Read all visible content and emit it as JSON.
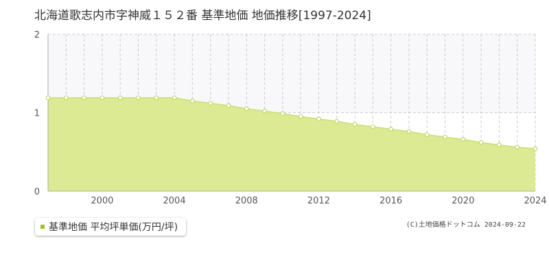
{
  "page": {
    "title": "北海道歌志内市字神威１５２番 基準地価 地価推移[1997-2024]",
    "credit": "(C)土地価格ドットコム 2024-09-22"
  },
  "legend": {
    "label": "基準地価 平均坪単価(万円/坪)"
  },
  "colors": {
    "area_fill": "#dbea93",
    "line": "#c8e070",
    "marker_fill": "#ffffff",
    "marker_stroke": "#bcd96a",
    "legend_swatch": "#9cc22b",
    "upper_band": "#f8f8fa",
    "grid": "#cccccc",
    "axis": "#aaaaaa"
  },
  "chart_data": {
    "type": "area",
    "x": [
      1997,
      1998,
      1999,
      2000,
      2001,
      2002,
      2003,
      2004,
      2005,
      2006,
      2007,
      2008,
      2009,
      2010,
      2011,
      2012,
      2013,
      2014,
      2015,
      2016,
      2017,
      2018,
      2019,
      2020,
      2021,
      2022,
      2023,
      2024
    ],
    "series": [
      {
        "name": "基準地価 平均坪単価(万円/坪)",
        "values": [
          1.19,
          1.19,
          1.19,
          1.19,
          1.19,
          1.19,
          1.19,
          1.19,
          1.15,
          1.12,
          1.09,
          1.05,
          1.02,
          0.99,
          0.95,
          0.92,
          0.89,
          0.85,
          0.82,
          0.79,
          0.76,
          0.72,
          0.69,
          0.66,
          0.62,
          0.59,
          0.56,
          0.54
        ]
      }
    ],
    "xlim": [
      1997,
      2024
    ],
    "ylim": [
      0,
      2
    ],
    "x_ticks": [
      "2000",
      "2004",
      "2008",
      "2012",
      "2016",
      "2020",
      "2024"
    ],
    "y_ticks": [
      "0",
      "1",
      "2"
    ],
    "grid": true
  }
}
